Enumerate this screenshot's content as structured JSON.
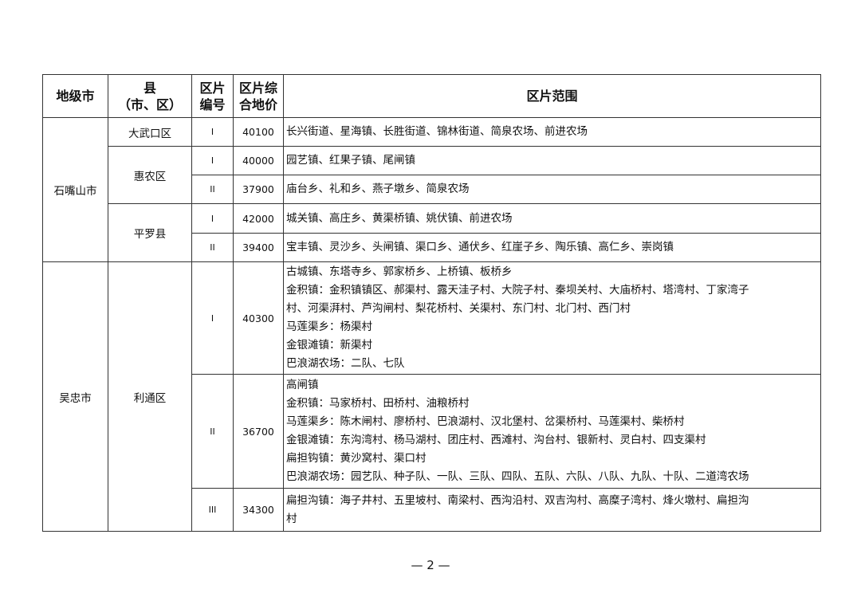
{
  "header": {
    "city": "地级市",
    "county_line1": "县",
    "county_line2": "（市、区）",
    "zone_line1": "区片",
    "zone_line2": "编号",
    "price_line1": "区片综",
    "price_line2": "合地价",
    "range": "区片范围"
  },
  "cities": [
    "石嘴山市",
    "吴忠市"
  ],
  "counties": [
    "大武口区",
    "惠农区",
    "平罗县",
    "利通区"
  ],
  "rows": [
    {
      "zone": "I",
      "price": "40100",
      "range": [
        "长兴街道、星海镇、长胜街道、锦林街道、简泉农场、前进农场"
      ]
    },
    {
      "zone": "I",
      "price": "40000",
      "range": [
        "园艺镇、红果子镇、尾闸镇"
      ]
    },
    {
      "zone": "II",
      "price": "37900",
      "range": [
        "庙台乡、礼和乡、燕子墩乡、简泉农场"
      ]
    },
    {
      "zone": "I",
      "price": "42000",
      "range": [
        "城关镇、高庄乡、黄渠桥镇、姚伏镇、前进农场"
      ]
    },
    {
      "zone": "II",
      "price": "39400",
      "range": [
        "宝丰镇、灵沙乡、头闸镇、渠口乡、通伏乡、红崖子乡、陶乐镇、高仁乡、崇岗镇"
      ]
    },
    {
      "zone": "I",
      "price": "40300",
      "range": [
        "古城镇、东塔寺乡、郭家桥乡、上桥镇、板桥乡",
        "金积镇：金积镇镇区、郝渠村、露天洼子村、大院子村、秦坝关村、大庙桥村、塔湾村、丁家湾子",
        "村、河渠湃村、芦沟闸村、梨花桥村、关渠村、东门村、北门村、西门村",
        "马莲渠乡：杨渠村",
        "金银滩镇：新渠村",
        "巴浪湖农场：二队、七队"
      ]
    },
    {
      "zone": "II",
      "price": "36700",
      "range": [
        "高闸镇",
        "金积镇：马家桥村、田桥村、油粮桥村",
        "马莲渠乡：陈木闸村、廖桥村、巴浪湖村、汉北堡村、岔渠桥村、马莲渠村、柴桥村",
        "金银滩镇：东沟湾村、杨马湖村、团庄村、西滩村、沟台村、银新村、灵白村、四支渠村",
        "扁担钩镇：黄沙窝村、渠口村",
        "巴浪湖农场：园艺队、种子队、一队、三队、四队、五队、六队、八队、九队、十队、二道湾农场"
      ]
    },
    {
      "zone": "III",
      "price": "34300",
      "range": [
        "扁担沟镇：海子井村、五里坡村、南梁村、西沟沿村、双吉沟村、高糜子湾村、烽火墩村、扁担沟",
        "村"
      ]
    }
  ],
  "page_number": "— 2 —"
}
